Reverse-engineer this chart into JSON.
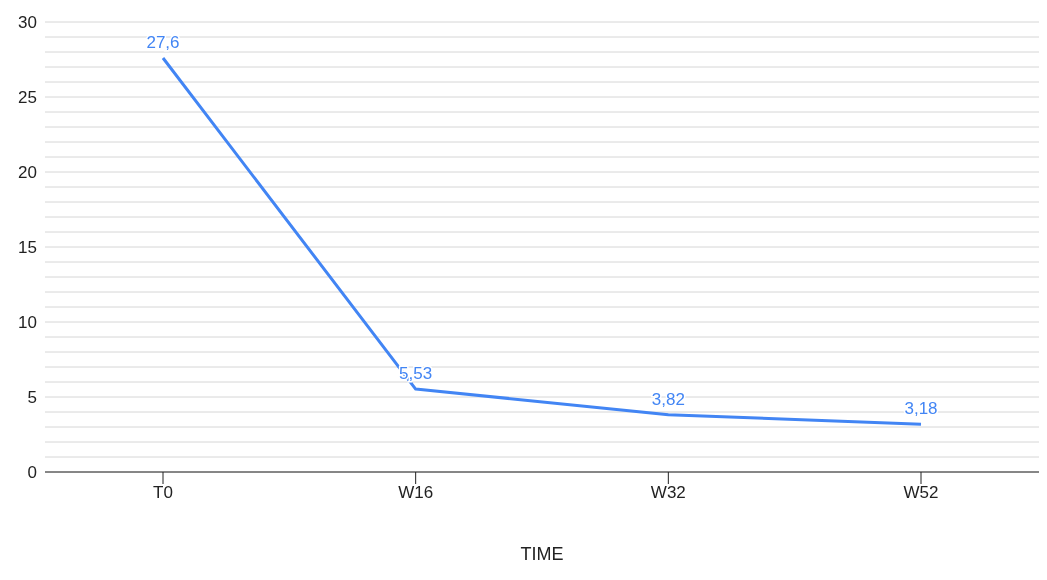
{
  "chart_data": {
    "type": "line",
    "xlabel": "TIME",
    "categories": [
      "T0",
      "W16",
      "W32",
      "W52"
    ],
    "series": [
      {
        "color": "#4285f4",
        "values": [
          27.6,
          5.53,
          3.82,
          3.18
        ],
        "value_labels": [
          "27,6",
          "5,53",
          "3,82",
          "3,18"
        ]
      }
    ],
    "ylim": [
      0,
      30
    ],
    "yticks": [
      0,
      {
        "value": 1,
        "label": null
      },
      {
        "value": 2,
        "label": null
      },
      {
        "value": 3,
        "label": null
      },
      {
        "value": 4,
        "label": null
      },
      5,
      {
        "value": 6,
        "label": null
      },
      {
        "value": 7,
        "label": null
      },
      {
        "value": 8,
        "label": null
      },
      {
        "value": 9,
        "label": null
      },
      10,
      {
        "value": 11,
        "label": null
      },
      {
        "value": 12,
        "label": null
      },
      {
        "value": 13,
        "label": null
      },
      {
        "value": 14,
        "label": null
      },
      15,
      {
        "value": 16,
        "label": null
      },
      {
        "value": 17,
        "label": null
      },
      {
        "value": 18,
        "label": null
      },
      {
        "value": 19,
        "label": null
      },
      20,
      {
        "value": 21,
        "label": null
      },
      {
        "value": 22,
        "label": null
      },
      {
        "value": 23,
        "label": null
      },
      {
        "value": 24,
        "label": null
      },
      25,
      {
        "value": 26,
        "label": null
      },
      {
        "value": 27,
        "label": null
      },
      {
        "value": 28,
        "label": null
      },
      {
        "value": 29,
        "label": null
      },
      30
    ],
    "grid": "y",
    "marker": "none",
    "line_style": "solid",
    "tick_labels": "xy"
  }
}
